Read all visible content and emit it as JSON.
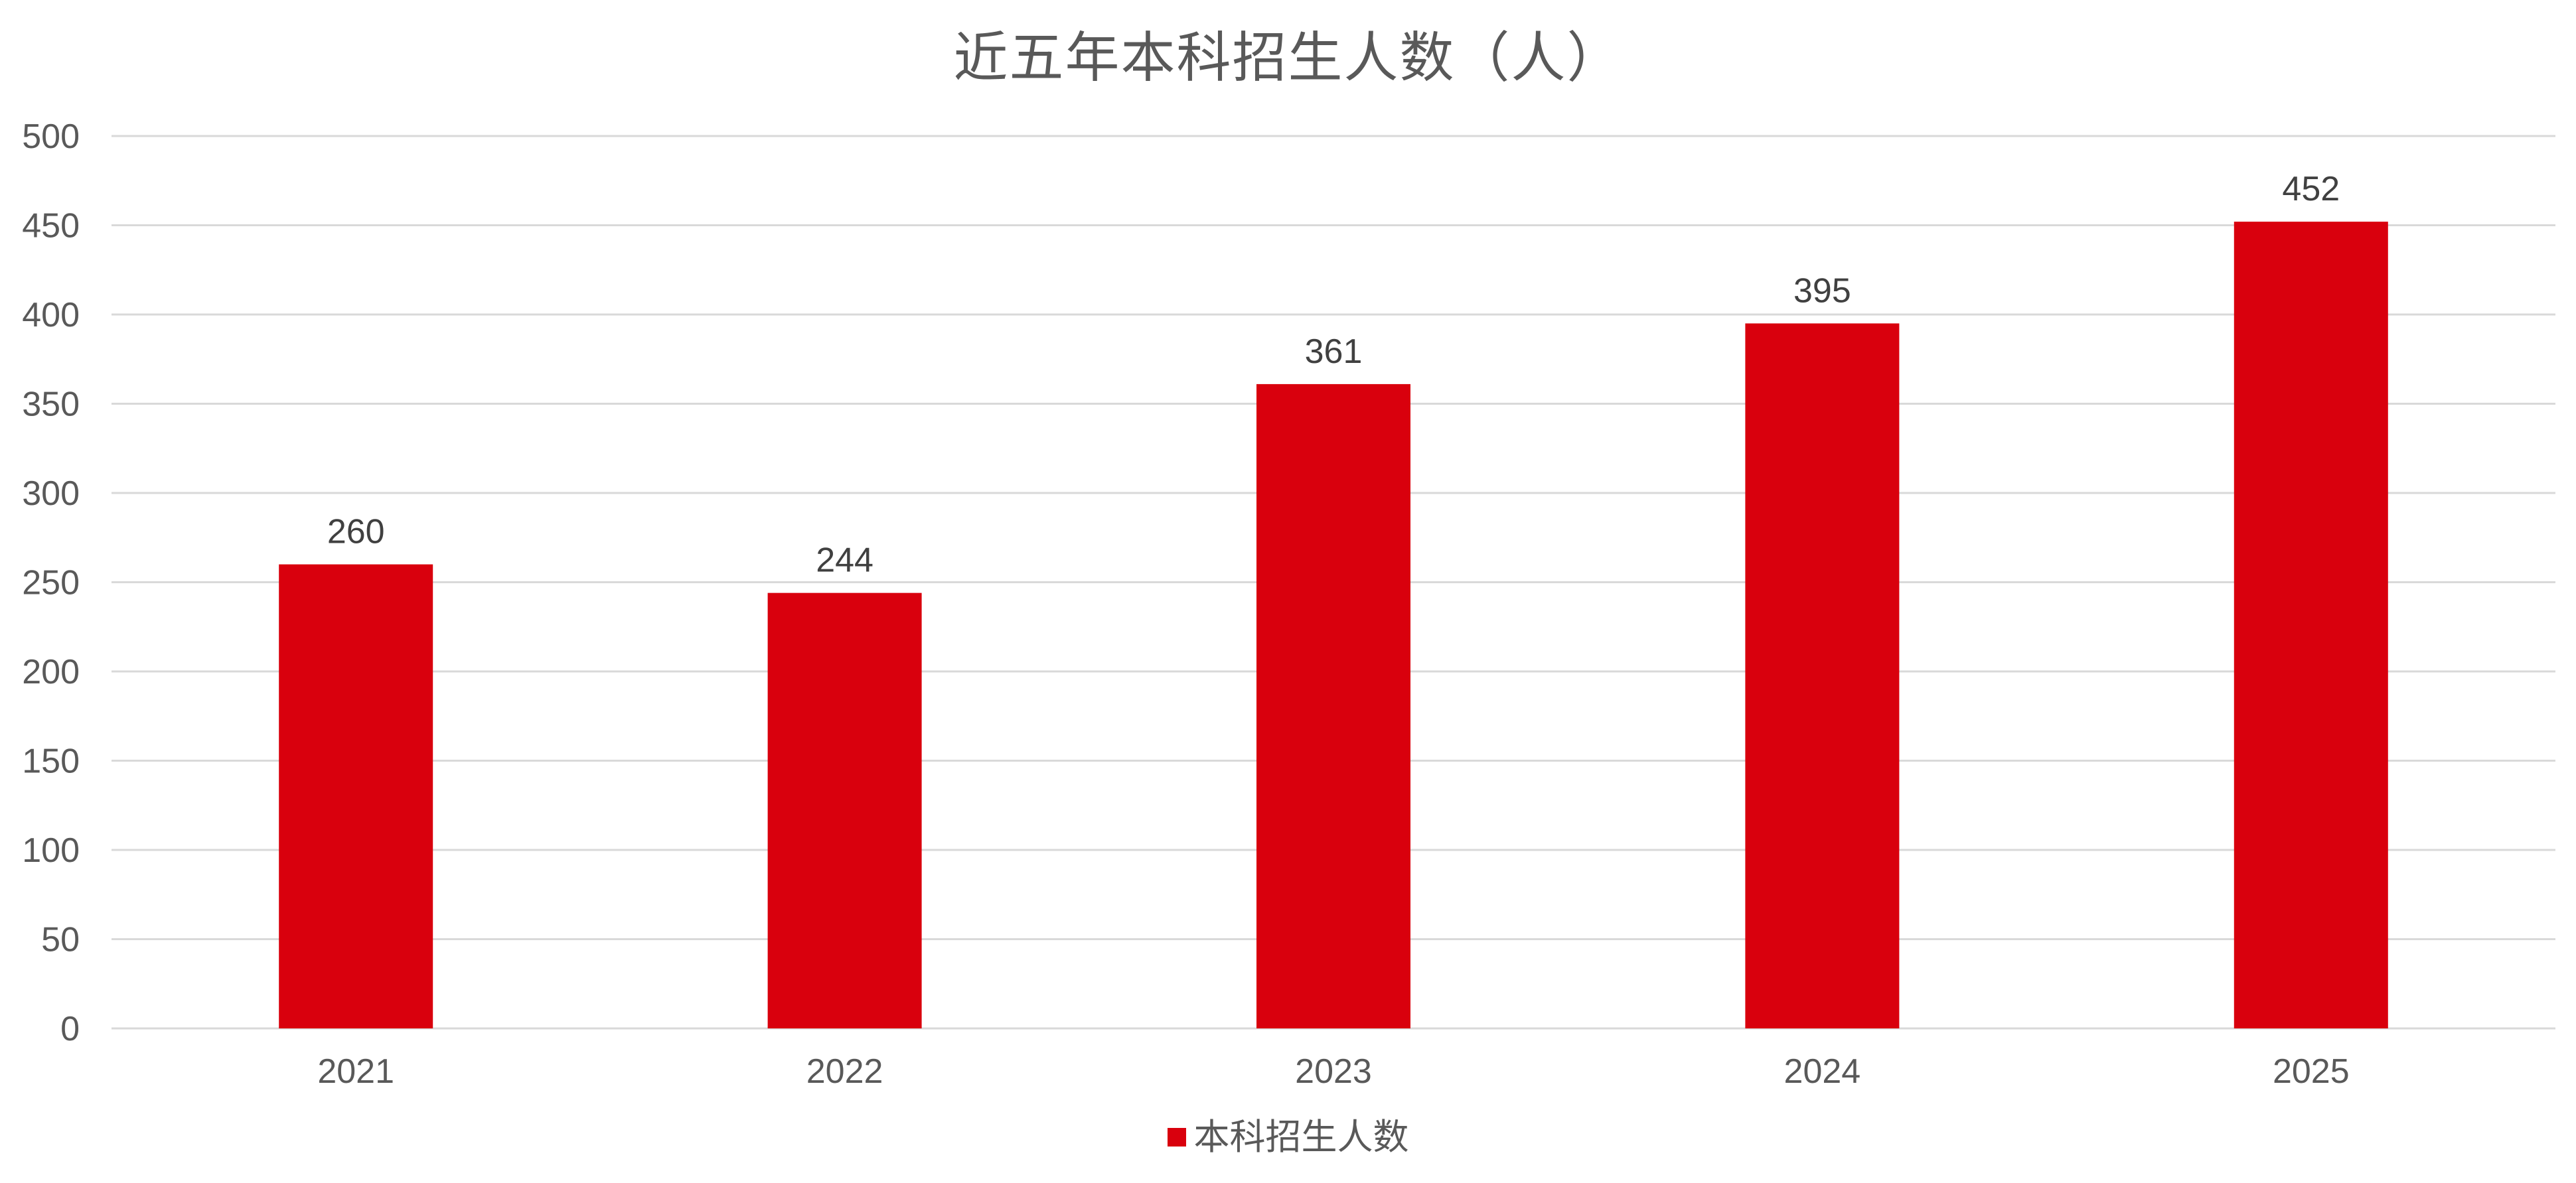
{
  "chart_data": {
    "type": "bar",
    "title": "近五年本科招生人数（人）",
    "categories": [
      "2021",
      "2022",
      "2023",
      "2024",
      "2025"
    ],
    "series": [
      {
        "name": "本科招生人数",
        "values": [
          260,
          244,
          361,
          395,
          452
        ],
        "color": "#D9000D"
      }
    ],
    "data_labels": [
      "260",
      "244",
      "361",
      "395",
      "452"
    ],
    "ylim": [
      0,
      500
    ],
    "yticks": [
      0,
      50,
      100,
      150,
      200,
      250,
      300,
      350,
      400,
      450,
      500
    ],
    "grid": true,
    "legend_position": "bottom",
    "colors": {
      "bar": "#D9000D",
      "gridline": "#D9D9D9",
      "axis_text": "#595959",
      "data_label": "#404040",
      "title": "#595959"
    }
  }
}
